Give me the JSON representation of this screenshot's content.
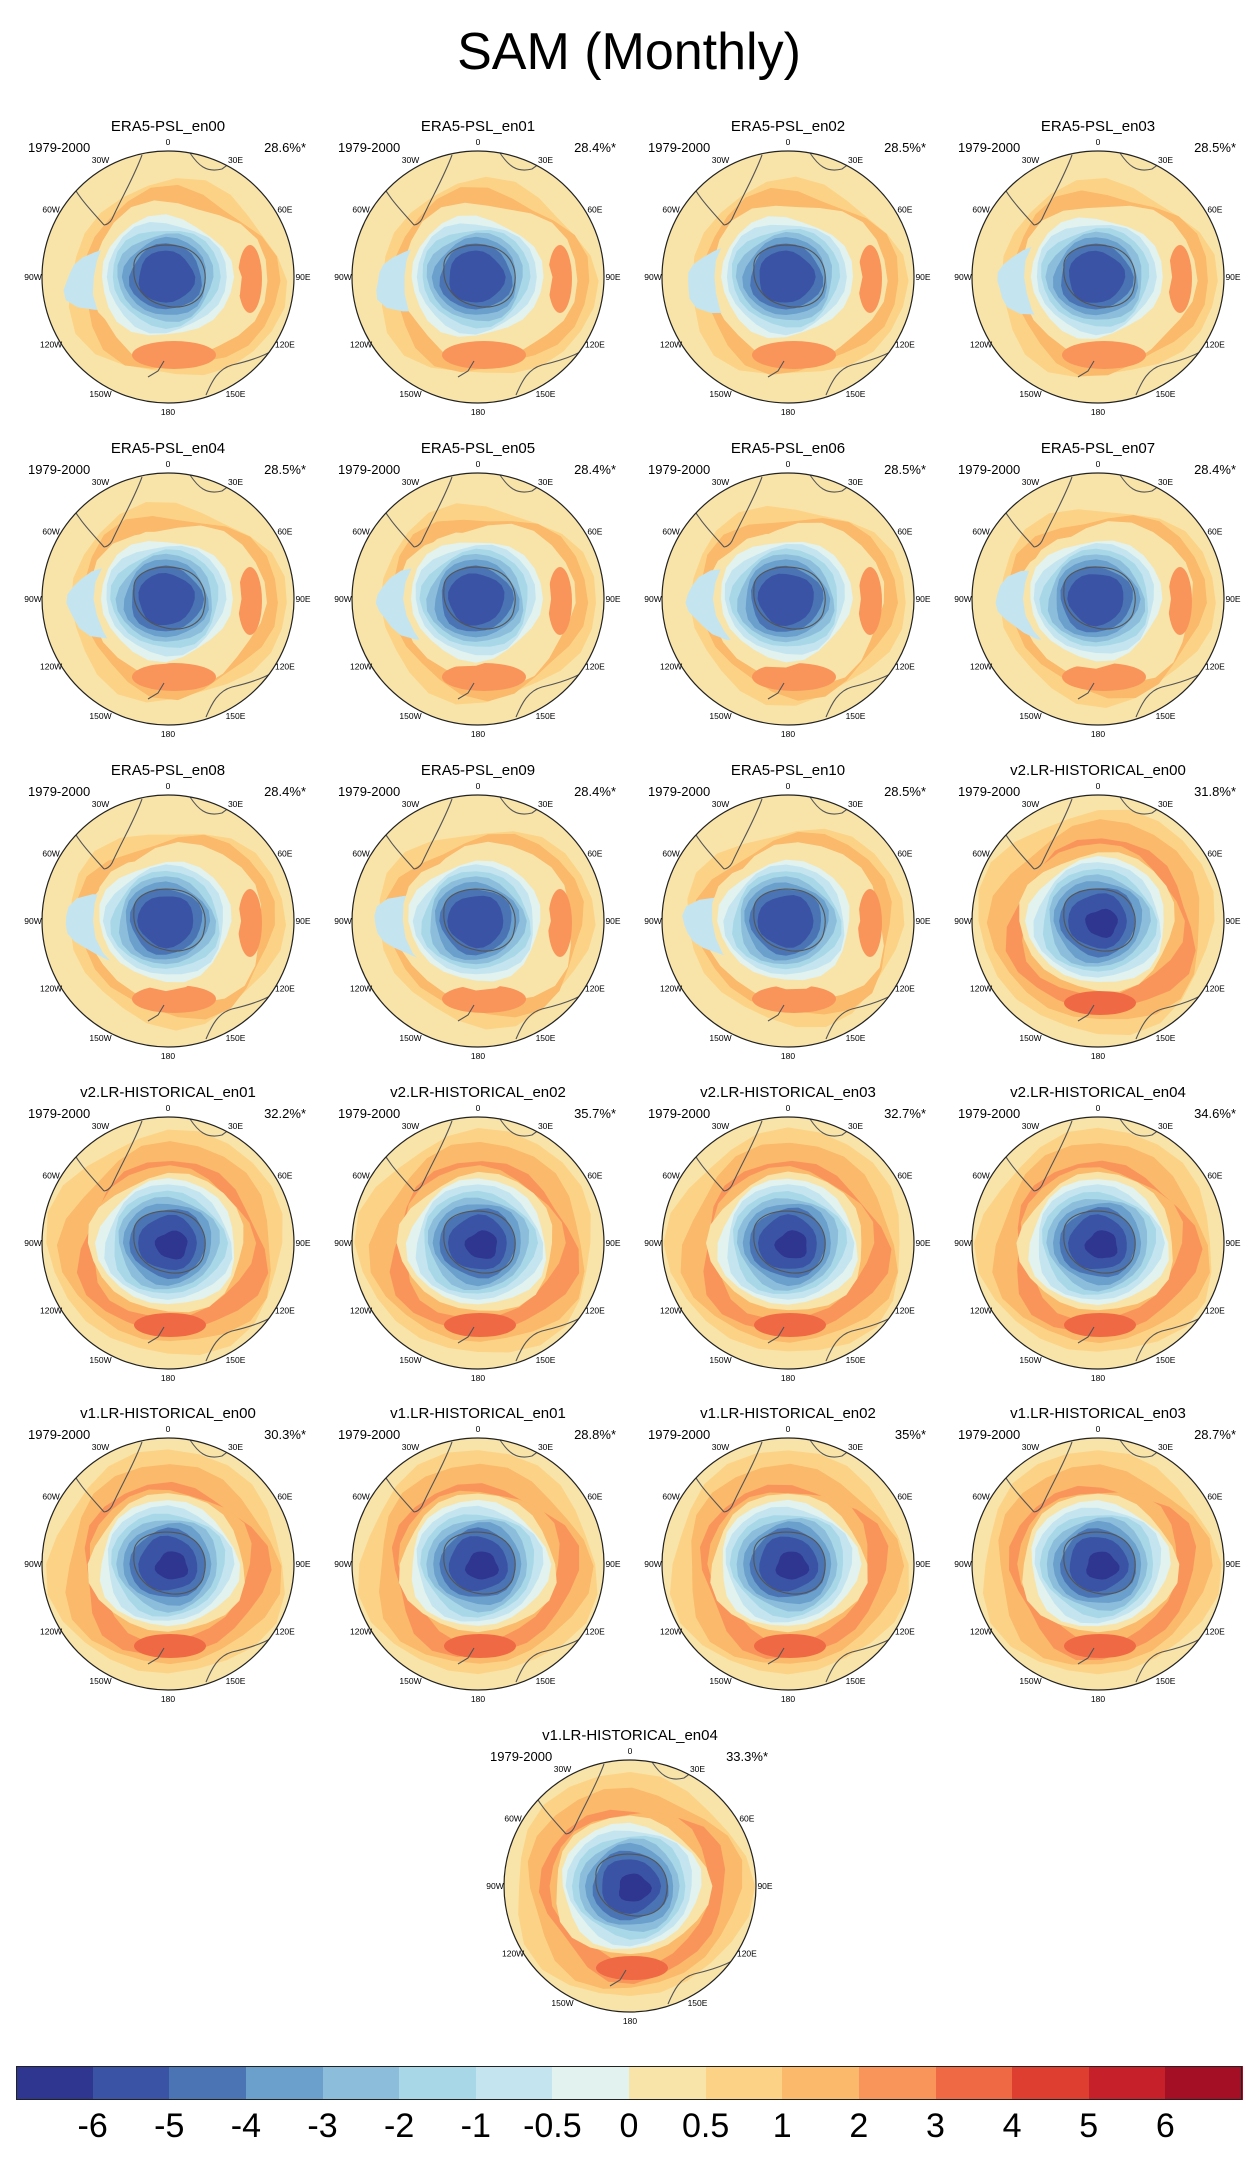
{
  "title": "SAM (Monthly)",
  "colors": {
    "negative_core": "#3a53a4",
    "negative_mid": "#5c8ec6",
    "negative_edge": "#cfe9f2",
    "neutral": "#f8e4a9",
    "positive_band": "#f9a35f",
    "positive_core": "#ea6c3f",
    "coast": "#555555"
  },
  "panels": [
    {
      "title": "ERA5-PSL_en00",
      "period": "1979-2000",
      "variance": "28.6%*"
    },
    {
      "title": "ERA5-PSL_en01",
      "period": "1979-2000",
      "variance": "28.4%*"
    },
    {
      "title": "ERA5-PSL_en02",
      "period": "1979-2000",
      "variance": "28.5%*"
    },
    {
      "title": "ERA5-PSL_en03",
      "period": "1979-2000",
      "variance": "28.5%*"
    },
    {
      "title": "ERA5-PSL_en04",
      "period": "1979-2000",
      "variance": "28.5%*"
    },
    {
      "title": "ERA5-PSL_en05",
      "period": "1979-2000",
      "variance": "28.4%*"
    },
    {
      "title": "ERA5-PSL_en06",
      "period": "1979-2000",
      "variance": "28.5%*"
    },
    {
      "title": "ERA5-PSL_en07",
      "period": "1979-2000",
      "variance": "28.4%*"
    },
    {
      "title": "ERA5-PSL_en08",
      "period": "1979-2000",
      "variance": "28.4%*"
    },
    {
      "title": "ERA5-PSL_en09",
      "period": "1979-2000",
      "variance": "28.4%*"
    },
    {
      "title": "ERA5-PSL_en10",
      "period": "1979-2000",
      "variance": "28.5%*"
    },
    {
      "title": "v2.LR-HISTORICAL_en00",
      "period": "1979-2000",
      "variance": "31.8%*"
    },
    {
      "title": "v2.LR-HISTORICAL_en01",
      "period": "1979-2000",
      "variance": "32.2%*"
    },
    {
      "title": "v2.LR-HISTORICAL_en02",
      "period": "1979-2000",
      "variance": "35.7%*"
    },
    {
      "title": "v2.LR-HISTORICAL_en03",
      "period": "1979-2000",
      "variance": "32.7%*"
    },
    {
      "title": "v2.LR-HISTORICAL_en04",
      "period": "1979-2000",
      "variance": "34.6%*"
    },
    {
      "title": "v1.LR-HISTORICAL_en00",
      "period": "1979-2000",
      "variance": "30.3%*"
    },
    {
      "title": "v1.LR-HISTORICAL_en01",
      "period": "1979-2000",
      "variance": "28.8%*"
    },
    {
      "title": "v1.LR-HISTORICAL_en02",
      "period": "1979-2000",
      "variance": "35%*"
    },
    {
      "title": "v1.LR-HISTORICAL_en03",
      "period": "1979-2000",
      "variance": "28.7%*"
    },
    {
      "title": "v1.LR-HISTORICAL_en04",
      "period": "1979-2000",
      "variance": "33.3%*"
    }
  ],
  "longitude_labels": [
    "0",
    "30E",
    "60E",
    "90E",
    "120E",
    "150E",
    "180",
    "150W",
    "120W",
    "90W",
    "60W",
    "30W"
  ],
  "colorbar": {
    "labels": [
      "-6",
      "-5",
      "-4",
      "-3",
      "-2",
      "-1",
      "-0.5",
      "0",
      "0.5",
      "1",
      "2",
      "3",
      "4",
      "5",
      "6"
    ],
    "colors": [
      "#2f3690",
      "#3a53a4",
      "#4a74b3",
      "#6b9fcc",
      "#8cbedc",
      "#a8d7e8",
      "#c4e5ef",
      "#e1f2ef",
      "#f8e4a9",
      "#fcd386",
      "#fab96b",
      "#f9955a",
      "#ef6a44",
      "#de3e2f",
      "#c6202a",
      "#a50f26"
    ]
  }
}
